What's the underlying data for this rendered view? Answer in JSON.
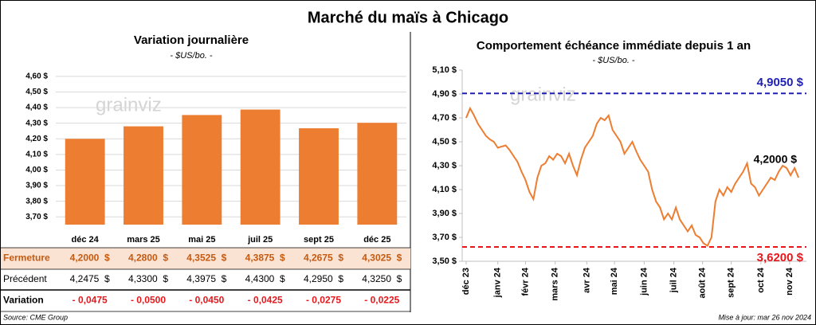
{
  "title": "Marché du maïs à Chicago",
  "watermark": "grainviz",
  "source": "Source: CME Group",
  "update": "Mise à jour: mar 26 nov 2024",
  "chart_data": [
    {
      "type": "bar",
      "title": "Variation journalière",
      "subtitle": "- $US/bo. -",
      "categories": [
        "déc 24",
        "mars 25",
        "mai 25",
        "juil 25",
        "sept 25",
        "déc 25"
      ],
      "values": [
        4.2,
        4.28,
        4.3525,
        4.3875,
        4.2675,
        4.3025
      ],
      "color": "#ed7d31",
      "grid": true,
      "ylim": [
        3.65,
        4.62
      ],
      "yticks": [
        {
          "value": 3.7,
          "label": "3,70 $"
        },
        {
          "value": 3.8,
          "label": "3,80 $"
        },
        {
          "value": 3.9,
          "label": "3,90 $"
        },
        {
          "value": 4.0,
          "label": "4,00 $"
        },
        {
          "value": 4.1,
          "label": "4,10 $"
        },
        {
          "value": 4.2,
          "label": "4,20 $"
        },
        {
          "value": 4.3,
          "label": "4,30 $"
        },
        {
          "value": 4.4,
          "label": "4,40 $"
        },
        {
          "value": 4.5,
          "label": "4,50 $"
        },
        {
          "value": 4.6,
          "label": "4,60 $"
        }
      ]
    },
    {
      "type": "line",
      "title": "Comportement échéance immédiate depuis 1 an",
      "subtitle": "- $US/bo. -",
      "color": "#ed7d31",
      "grid": false,
      "x": [
        0,
        4,
        8,
        12,
        16,
        20,
        24,
        28,
        32,
        36,
        40,
        44,
        48,
        52,
        56,
        60,
        64,
        68,
        72,
        76,
        80,
        84,
        88,
        92,
        96,
        100,
        104,
        108,
        112,
        116,
        120,
        124,
        128,
        132,
        136,
        140,
        144,
        148,
        152,
        156,
        160,
        164,
        168,
        172,
        176,
        180,
        184,
        188,
        192,
        196,
        200,
        204,
        208,
        212,
        216,
        220,
        224,
        228,
        232,
        236,
        240,
        244,
        248,
        252,
        256,
        260,
        264,
        268,
        272,
        276,
        280,
        284,
        288,
        292,
        296,
        300,
        304,
        308,
        312,
        316,
        320,
        324,
        328,
        332,
        336
      ],
      "values": [
        4.7,
        4.78,
        4.72,
        4.65,
        4.6,
        4.55,
        4.52,
        4.5,
        4.45,
        4.46,
        4.47,
        4.43,
        4.38,
        4.33,
        4.25,
        4.18,
        4.08,
        4.02,
        4.2,
        4.3,
        4.32,
        4.38,
        4.35,
        4.4,
        4.38,
        4.32,
        4.4,
        4.3,
        4.22,
        4.35,
        4.45,
        4.5,
        4.55,
        4.65,
        4.7,
        4.68,
        4.72,
        4.6,
        4.55,
        4.5,
        4.4,
        4.45,
        4.5,
        4.42,
        4.35,
        4.3,
        4.25,
        4.1,
        4.0,
        3.95,
        3.85,
        3.9,
        3.85,
        3.95,
        3.85,
        3.8,
        3.75,
        3.8,
        3.72,
        3.7,
        3.65,
        3.63,
        3.7,
        4.0,
        4.1,
        4.05,
        4.12,
        4.08,
        4.15,
        4.2,
        4.25,
        4.32,
        4.15,
        4.12,
        4.05,
        4.1,
        4.15,
        4.2,
        4.18,
        4.25,
        4.3,
        4.28,
        4.22,
        4.28,
        4.2
      ],
      "last_label": "4,2000 $",
      "xlim": [
        -4,
        344
      ],
      "xticks": [
        {
          "value": 0,
          "label": "déc 23"
        },
        {
          "value": 32,
          "label": "janv 24"
        },
        {
          "value": 60,
          "label": "févr 24"
        },
        {
          "value": 90,
          "label": "mars 24"
        },
        {
          "value": 122,
          "label": "avr 24"
        },
        {
          "value": 150,
          "label": "mai 24"
        },
        {
          "value": 180,
          "label": "juin 24"
        },
        {
          "value": 210,
          "label": "juil 24"
        },
        {
          "value": 239,
          "label": "août 24"
        },
        {
          "value": 268,
          "label": "sept 24"
        },
        {
          "value": 298,
          "label": "oct 24"
        },
        {
          "value": 327,
          "label": "nov 24"
        }
      ],
      "ylim": [
        3.5,
        5.1
      ],
      "yticks": [
        {
          "value": 3.5,
          "label": "3,50 $"
        },
        {
          "value": 3.7,
          "label": "3,70 $"
        },
        {
          "value": 3.9,
          "label": "3,90 $"
        },
        {
          "value": 4.1,
          "label": "4,10 $"
        },
        {
          "value": 4.3,
          "label": "4,30 $"
        },
        {
          "value": 4.5,
          "label": "4,50 $"
        },
        {
          "value": 4.7,
          "label": "4,70 $"
        },
        {
          "value": 4.9,
          "label": "4,90 $"
        },
        {
          "value": 5.1,
          "label": "5,10 $"
        }
      ],
      "reference_lines": [
        {
          "value": 4.905,
          "label": "4,9050 $",
          "color": "#1f1fb4",
          "side": "above"
        },
        {
          "value": 3.62,
          "label": "3,6200 $",
          "color": "#e8161b",
          "side": "below"
        }
      ]
    }
  ],
  "table": {
    "rows": [
      {
        "label": "Fermeture",
        "cells": [
          "4,2000  $",
          "4,2800  $",
          "4,3525  $",
          "4,3875  $",
          "4,2675  $",
          "4,3025  $"
        ]
      },
      {
        "label": "Précédent",
        "cells": [
          "4,2475  $",
          "4,3300  $",
          "4,3975  $",
          "4,4300  $",
          "4,2950  $",
          "4,3250  $"
        ]
      },
      {
        "label": "Variation",
        "cells": [
          "- 0,0475",
          "- 0,0500",
          "- 0,0450",
          "- 0,0425",
          "- 0,0275",
          "- 0,0225"
        ]
      }
    ]
  }
}
